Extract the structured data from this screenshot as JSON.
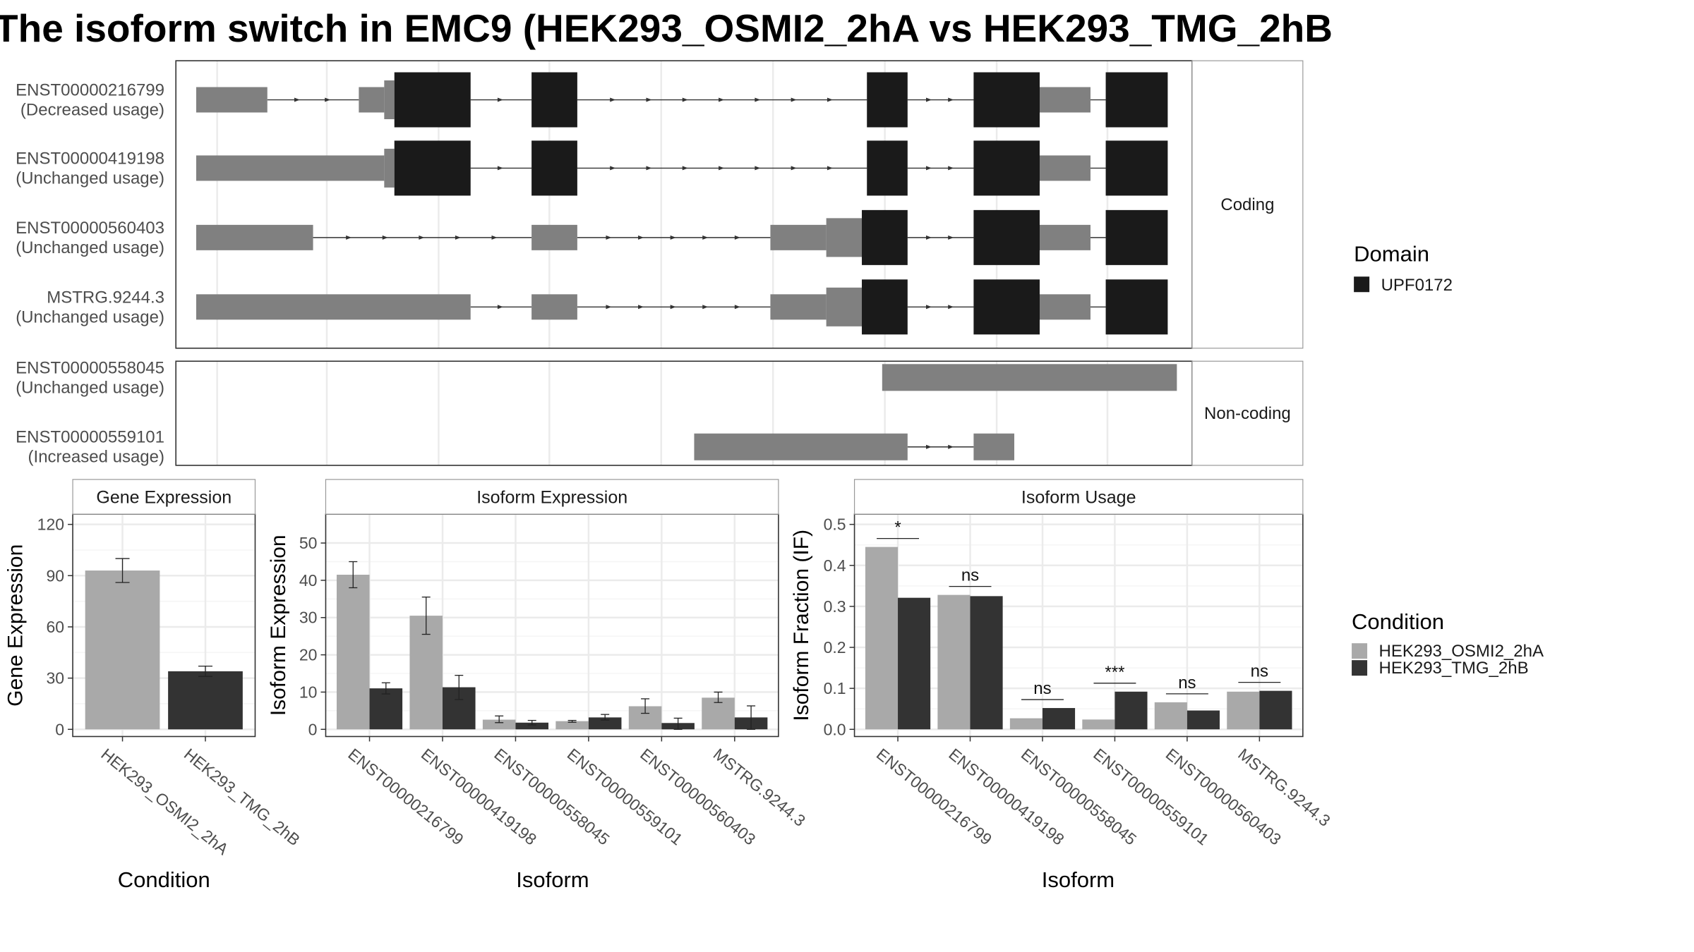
{
  "title": "The isoform switch in EMC9 (HEK293_OSMI2_2hA vs HEK293_TMG_2hB",
  "colors": {
    "domain_fill": "#1a1a1a",
    "exon_fill": "#808080",
    "cond_a": "#a9a9a9",
    "cond_b": "#333333",
    "grid": "#ebebeb",
    "strip_bg": "#ffffff"
  },
  "transcript_panel": {
    "coding_label": "Coding",
    "noncoding_label": "Non-coding",
    "domain_legend": {
      "title": "Domain",
      "items": [
        "UPF0172"
      ]
    },
    "coding": [
      {
        "name": "ENST00000216799",
        "usage": "(Decreased usage)",
        "utr": [
          [
            0.02,
            0.09
          ],
          [
            0.18,
            0.205
          ],
          [
            0.83,
            0.9
          ]
        ],
        "cds": [
          [
            0.205,
            0.215
          ],
          [
            0.798,
            0.83
          ]
        ],
        "domain": [
          [
            0.215,
            0.29
          ],
          [
            0.35,
            0.395
          ],
          [
            0.68,
            0.72
          ],
          [
            0.785,
            0.85
          ],
          [
            0.915,
            0.976
          ]
        ],
        "introns": [
          [
            0.09,
            0.18
          ],
          [
            0.29,
            0.35
          ],
          [
            0.395,
            0.68
          ],
          [
            0.72,
            0.785
          ],
          [
            0.85,
            0.915
          ]
        ]
      },
      {
        "name": "ENST00000419198",
        "usage": "(Unchanged usage)",
        "utr": [
          [
            0.02,
            0.205
          ],
          [
            0.83,
            0.9
          ]
        ],
        "cds": [
          [
            0.205,
            0.215
          ],
          [
            0.798,
            0.83
          ]
        ],
        "domain": [
          [
            0.215,
            0.29
          ],
          [
            0.35,
            0.395
          ],
          [
            0.68,
            0.72
          ],
          [
            0.785,
            0.85
          ],
          [
            0.915,
            0.976
          ]
        ],
        "introns": [
          [
            0.29,
            0.35
          ],
          [
            0.395,
            0.68
          ],
          [
            0.72,
            0.785
          ],
          [
            0.85,
            0.915
          ]
        ]
      },
      {
        "name": "ENST00000560403",
        "usage": "(Unchanged usage)",
        "utr": [
          [
            0.02,
            0.135
          ],
          [
            0.35,
            0.395
          ],
          [
            0.585,
            0.64
          ],
          [
            0.83,
            0.9
          ]
        ],
        "cds": [
          [
            0.64,
            0.675
          ],
          [
            0.798,
            0.83
          ]
        ],
        "domain": [
          [
            0.675,
            0.72
          ],
          [
            0.785,
            0.85
          ],
          [
            0.915,
            0.976
          ]
        ],
        "introns": [
          [
            0.135,
            0.35
          ],
          [
            0.395,
            0.585
          ],
          [
            0.72,
            0.785
          ],
          [
            0.85,
            0.915
          ]
        ]
      },
      {
        "name": "MSTRG.9244.3",
        "usage": "(Unchanged usage)",
        "utr": [
          [
            0.02,
            0.29
          ],
          [
            0.35,
            0.395
          ],
          [
            0.585,
            0.64
          ],
          [
            0.83,
            0.9
          ]
        ],
        "cds": [
          [
            0.64,
            0.675
          ],
          [
            0.798,
            0.83
          ]
        ],
        "domain": [
          [
            0.675,
            0.72
          ],
          [
            0.785,
            0.85
          ],
          [
            0.915,
            0.976
          ]
        ],
        "introns": [
          [
            0.29,
            0.35
          ],
          [
            0.395,
            0.585
          ],
          [
            0.72,
            0.785
          ],
          [
            0.85,
            0.915
          ]
        ]
      }
    ],
    "noncoding": [
      {
        "name": "ENST00000558045",
        "usage": "(Unchanged usage)",
        "exons": [
          [
            0.695,
            0.985
          ]
        ],
        "introns": []
      },
      {
        "name": "ENST00000559101",
        "usage": "(Increased usage)",
        "exons": [
          [
            0.51,
            0.72
          ],
          [
            0.785,
            0.825
          ]
        ],
        "introns": [
          [
            0.72,
            0.785
          ]
        ]
      }
    ]
  },
  "chart_data": [
    {
      "type": "bar",
      "title": "Gene Expression",
      "xlabel": "Condition",
      "ylabel": "Gene Expression",
      "ylim": [
        0,
        120
      ],
      "yticks": [
        0,
        30,
        60,
        90,
        120
      ],
      "categories": [
        "HEK293_OSMI2_2hA",
        "HEK293_TMG_2hB"
      ],
      "values": [
        93,
        34
      ],
      "errors": [
        [
          86,
          100
        ],
        [
          31,
          37
        ]
      ]
    },
    {
      "type": "bar",
      "title": "Isoform Expression",
      "xlabel": "Isoform",
      "ylabel": "Isoform Expression",
      "ylim": [
        0,
        55
      ],
      "yticks": [
        0,
        10,
        20,
        30,
        40,
        50
      ],
      "categories": [
        "ENST00000216799",
        "ENST00000419198",
        "ENST00000558045",
        "ENST00000559101",
        "ENST00000560403",
        "MSTRG.9244.3"
      ],
      "series": [
        {
          "name": "HEK293_OSMI2_2hA",
          "values": [
            41.5,
            30.5,
            2.6,
            2.2,
            6.2,
            8.5
          ],
          "errors": [
            [
              38,
              45
            ],
            [
              25.5,
              35.5
            ],
            [
              1.8,
              3.6
            ],
            [
              1.9,
              2.4
            ],
            [
              4.3,
              8.2
            ],
            [
              7.2,
              10
            ]
          ]
        },
        {
          "name": "HEK293_TMG_2hB",
          "values": [
            11,
            11.3,
            1.8,
            3.2,
            1.7,
            3.2
          ],
          "errors": [
            [
              9.5,
              12.5
            ],
            [
              8,
              14.5
            ],
            [
              1.2,
              2.4
            ],
            [
              2.5,
              4.0
            ],
            [
              0,
              3
            ],
            [
              0,
              6.3
            ]
          ]
        }
      ]
    },
    {
      "type": "bar",
      "title": "Isoform Usage",
      "xlabel": "Isoform",
      "ylabel": "Isoform Fraction (IF)",
      "ylim": [
        0,
        0.5
      ],
      "yticks": [
        "0.0",
        "0.1",
        "0.2",
        "0.3",
        "0.4",
        "0.5"
      ],
      "categories": [
        "ENST00000216799",
        "ENST00000419198",
        "ENST00000558045",
        "ENST00000559101",
        "ENST00000560403",
        "MSTRG.9244.3"
      ],
      "series": [
        {
          "name": "HEK293_OSMI2_2hA",
          "values": [
            0.445,
            0.328,
            0.027,
            0.024,
            0.066,
            0.092
          ]
        },
        {
          "name": "HEK293_TMG_2hB",
          "values": [
            0.321,
            0.325,
            0.052,
            0.092,
            0.046,
            0.094
          ]
        }
      ],
      "significance": [
        "*",
        "ns",
        "ns",
        "***",
        "ns",
        "ns"
      ]
    }
  ],
  "condition_legend": {
    "title": "Condition",
    "items": [
      "HEK293_OSMI2_2hA",
      "HEK293_TMG_2hB"
    ]
  }
}
